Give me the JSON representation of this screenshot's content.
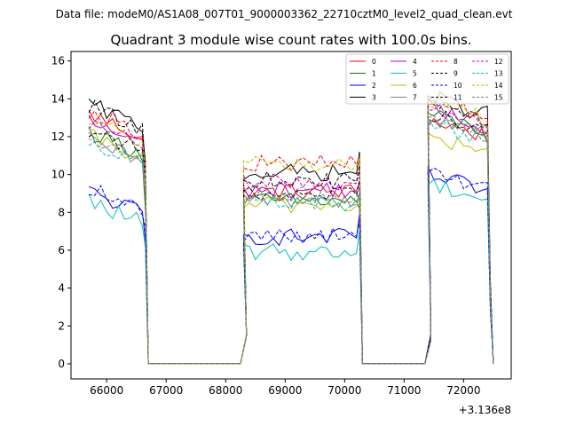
{
  "chart_data": {
    "type": "line",
    "suptitle": "Data file: modeM0/AS1A08_007T01_9000003362_22710cztM0_level2_quad_clean.evt",
    "title": "Quadrant 3 module wise count rates with 100.0s bins.",
    "xlabel": "",
    "ylabel": "",
    "x_offset_label": "+3.136e8",
    "xlim": [
      65400,
      72800
    ],
    "ylim": [
      -0.8,
      16.5
    ],
    "xticks": [
      66000,
      67000,
      68000,
      69000,
      70000,
      71000,
      72000
    ],
    "xtick_labels": [
      "66000",
      "67000",
      "68000",
      "69000",
      "70000",
      "71000",
      "72000"
    ],
    "yticks": [
      0,
      2,
      4,
      6,
      8,
      10,
      12,
      14,
      16
    ],
    "ytick_labels": [
      "0",
      "2",
      "4",
      "6",
      "8",
      "10",
      "12",
      "14",
      "16"
    ],
    "legend_position": "top-right",
    "segments": [
      {
        "start": 65700,
        "end": 66700
      },
      {
        "start": 68300,
        "end": 70300
      },
      {
        "start": 71400,
        "end": 72500
      }
    ],
    "series": [
      {
        "name": "0",
        "color": "#ff0000",
        "dashed": false,
        "levels": [
          12.4,
          9.1,
          12.3
        ],
        "drop": [
          8.6,
          8.6,
          3.5
        ]
      },
      {
        "name": "1",
        "color": "#008000",
        "dashed": false,
        "levels": [
          11.5,
          8.6,
          12.6
        ],
        "drop": [
          8.2,
          8.2,
          3.8
        ]
      },
      {
        "name": "2",
        "color": "#0000ff",
        "dashed": false,
        "levels": [
          8.3,
          6.7,
          9.4
        ],
        "drop": [
          6.5,
          7.9,
          3.0
        ]
      },
      {
        "name": "3",
        "color": "#000000",
        "dashed": false,
        "levels": [
          12.9,
          10.1,
          13.5
        ],
        "drop": [
          10.7,
          11.2,
          4.2
        ]
      },
      {
        "name": "4",
        "color": "#bf00bf",
        "dashed": false,
        "levels": [
          12.0,
          9.2,
          12.8
        ],
        "drop": [
          9.0,
          9.6,
          3.6
        ]
      },
      {
        "name": "5",
        "color": "#00bfbf",
        "dashed": false,
        "levels": [
          7.8,
          5.9,
          9.0
        ],
        "drop": [
          6.2,
          7.0,
          3.2
        ]
      },
      {
        "name": "6",
        "color": "#bfbf00",
        "dashed": false,
        "levels": [
          11.2,
          8.4,
          11.4
        ],
        "drop": [
          9.0,
          8.8,
          3.0
        ]
      },
      {
        "name": "7",
        "color": "#808080",
        "dashed": false,
        "levels": [
          11.0,
          8.7,
          12.4
        ],
        "drop": [
          8.8,
          8.8,
          3.7
        ]
      },
      {
        "name": "8",
        "color": "#ff0000",
        "dashed": true,
        "levels": [
          12.6,
          10.6,
          13.4
        ],
        "drop": [
          10.3,
          11.0,
          4.0
        ]
      },
      {
        "name": "9",
        "color": "#000000",
        "dashed": true,
        "levels": [
          11.6,
          9.0,
          12.7
        ],
        "drop": [
          9.8,
          9.7,
          3.5
        ]
      },
      {
        "name": "10",
        "color": "#0000ff",
        "dashed": true,
        "levels": [
          8.5,
          6.8,
          9.5
        ],
        "drop": [
          7.2,
          7.5,
          2.8
        ]
      },
      {
        "name": "11",
        "color": "#000000",
        "dashed": true,
        "levels": [
          12.8,
          9.7,
          13.2
        ],
        "drop": [
          10.2,
          10.5,
          4.5
        ]
      },
      {
        "name": "12",
        "color": "#bf00bf",
        "dashed": true,
        "levels": [
          11.9,
          9.6,
          12.9
        ],
        "drop": [
          10.1,
          10.2,
          3.8
        ]
      },
      {
        "name": "13",
        "color": "#00bfbf",
        "dashed": true,
        "levels": [
          11.0,
          8.5,
          12.1
        ],
        "drop": [
          9.4,
          9.1,
          3.4
        ]
      },
      {
        "name": "14",
        "color": "#bfbf00",
        "dashed": true,
        "levels": [
          12.1,
          10.5,
          13.3
        ],
        "drop": [
          10.5,
          10.9,
          3.9
        ]
      },
      {
        "name": "15",
        "color": "#808080",
        "dashed": true,
        "levels": [
          11.3,
          8.9,
          12.2
        ],
        "drop": [
          9.5,
          9.3,
          3.6
        ]
      }
    ]
  }
}
